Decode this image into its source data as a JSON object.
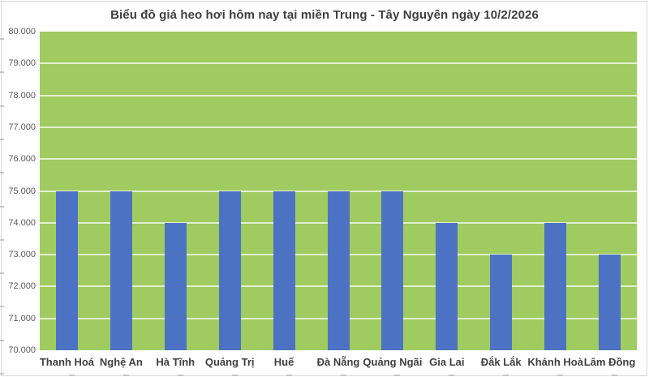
{
  "chart_data": {
    "type": "bar",
    "title": "Biểu đồ giá heo hơi hôm nay tại miền Trung - Tây Nguyên ngày 10/2/2026",
    "categories": [
      "Thanh Hoá",
      "Nghệ An",
      "Hà Tĩnh",
      "Quảng Trị",
      "Huế",
      "Đà Nẵng",
      "Quảng Ngãi",
      "Gia Lai",
      "Đắk Lắk",
      "Khánh Hoà",
      "Lâm Đồng"
    ],
    "values": [
      75000,
      75000,
      74000,
      75000,
      75000,
      75000,
      75000,
      74000,
      73000,
      74000,
      73000
    ],
    "y_tick_labels": [
      "80.000",
      "79.000",
      "78.000",
      "77.000",
      "76.000",
      "75.000",
      "74.000",
      "73.000",
      "72.000",
      "71.000",
      "70.000"
    ],
    "ylim": [
      70000,
      80000
    ],
    "y_step": 1000,
    "xlabel": "",
    "ylabel": "",
    "grid": true,
    "legend": "none"
  },
  "colors": {
    "bar": "#4c73c3",
    "plot_background": "#9fcb60",
    "gridline": "rgba(255,255,255,0.70)",
    "title_text": "#3f3f3f",
    "y_label_text": "#595959",
    "x_label_text": "#3f3f3f",
    "frame_border": "#d9d9d9",
    "edge_tick": "#c6c6c6"
  }
}
